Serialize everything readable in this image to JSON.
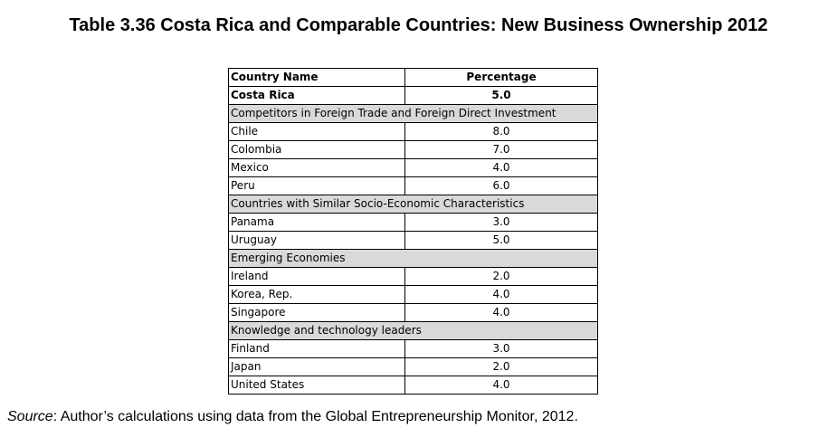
{
  "title": "Table 3.36 Costa Rica and Comparable Countries: New Business Ownership 2012",
  "table": {
    "headers": [
      "Country Name",
      "Percentage"
    ],
    "highlight": {
      "name": "Costa Rica",
      "value": "5.0"
    },
    "groups": [
      {
        "label": "Competitors in Foreign Trade and Foreign Direct Investment",
        "rows": [
          {
            "name": "Chile",
            "value": "8.0"
          },
          {
            "name": "Colombia",
            "value": "7.0"
          },
          {
            "name": "Mexico",
            "value": "4.0"
          },
          {
            "name": "Peru",
            "value": "6.0"
          }
        ]
      },
      {
        "label": "Countries with Similar Socio-Economic Characteristics",
        "rows": [
          {
            "name": "Panama",
            "value": "3.0"
          },
          {
            "name": "Uruguay",
            "value": "5.0"
          }
        ]
      },
      {
        "label": "Emerging Economies",
        "rows": [
          {
            "name": "Ireland",
            "value": "2.0"
          },
          {
            "name": "Korea, Rep.",
            "value": "4.0"
          },
          {
            "name": "Singapore",
            "value": "4.0"
          }
        ]
      },
      {
        "label": "Knowledge and technology leaders",
        "rows": [
          {
            "name": "Finland",
            "value": "3.0"
          },
          {
            "name": "Japan",
            "value": "2.0"
          },
          {
            "name": "United States",
            "value": "4.0"
          }
        ]
      }
    ]
  },
  "source": {
    "label": "Source",
    "text": ": Author’s calculations using data from the Global Entrepreneurship Monitor, 2012."
  }
}
